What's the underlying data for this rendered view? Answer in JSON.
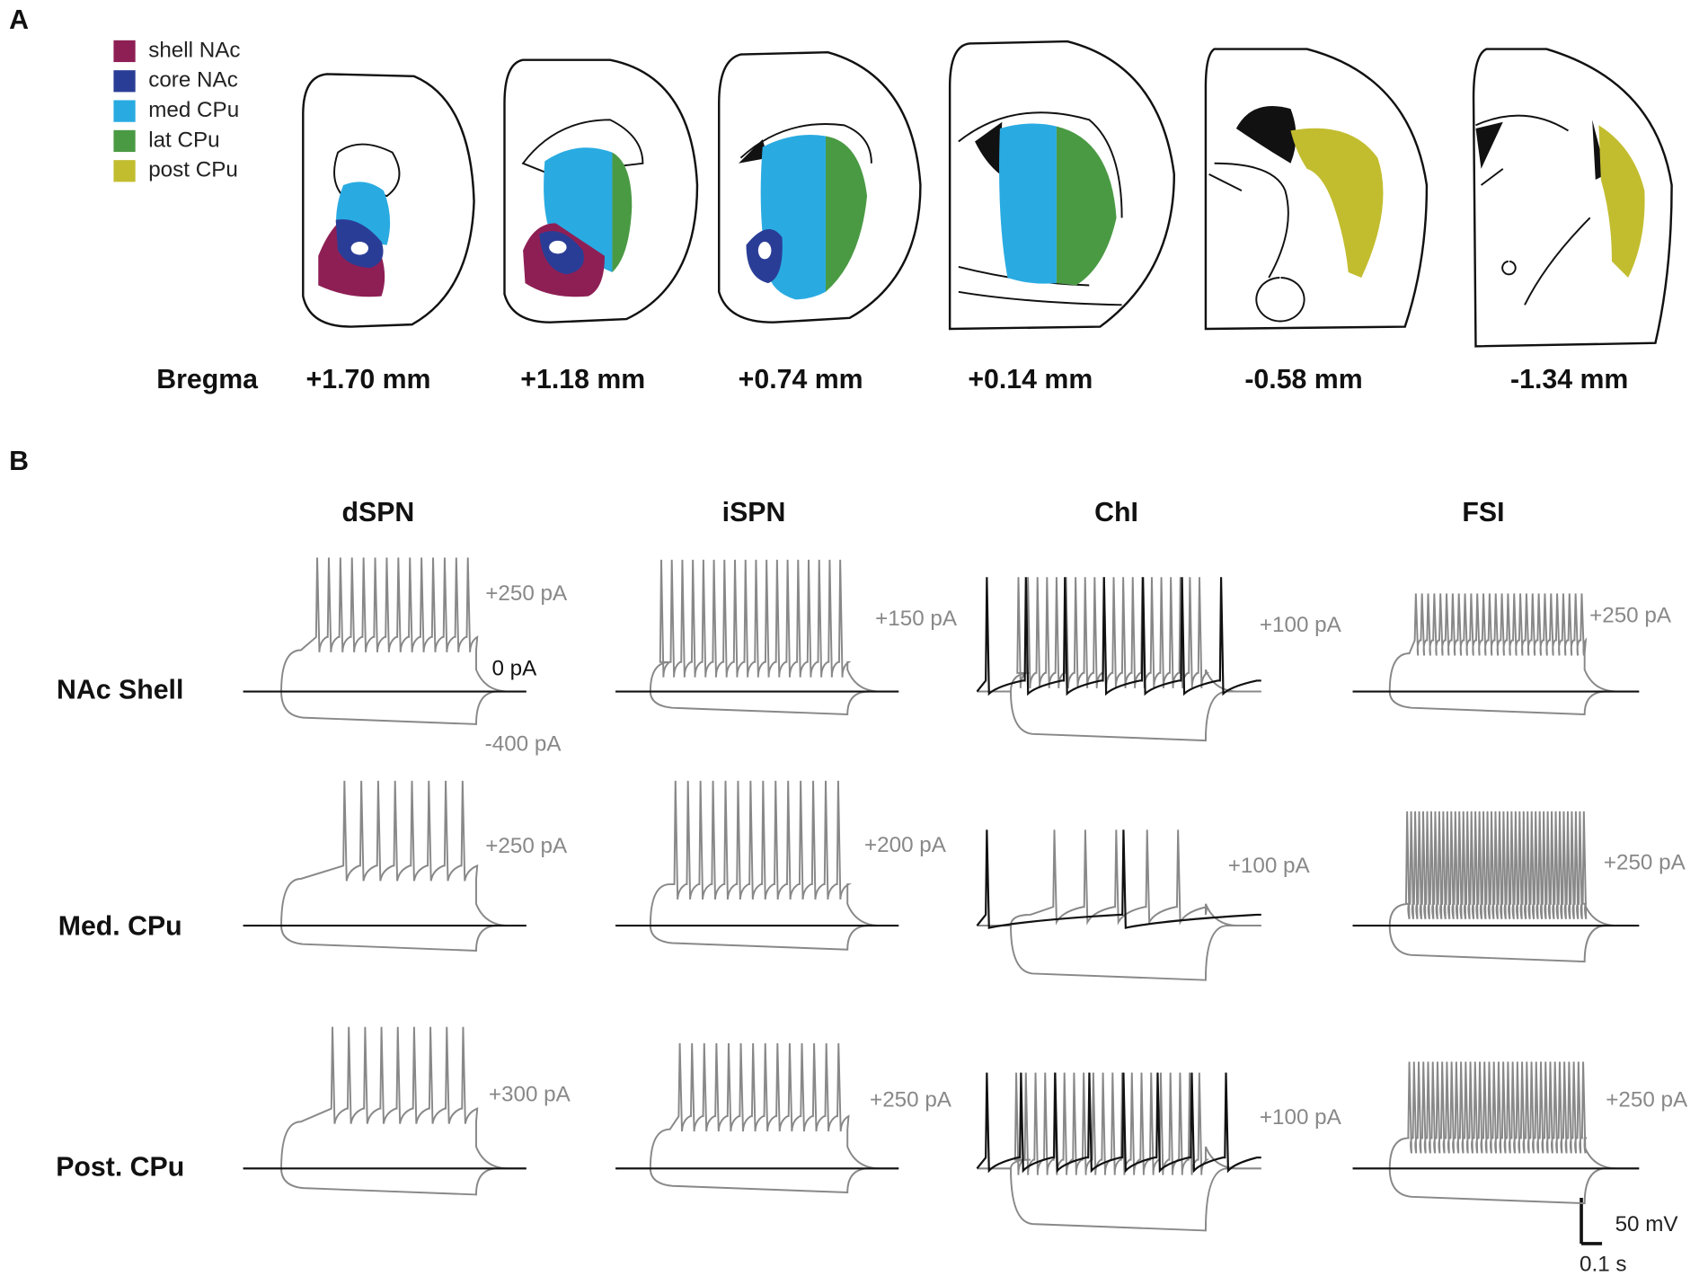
{
  "panel_a": {
    "label": "A",
    "legend": [
      {
        "name": "shell NAc",
        "color": "#8e1f55"
      },
      {
        "name": "core NAc",
        "color": "#2a3d96"
      },
      {
        "name": "med CPu",
        "color": "#29abe2"
      },
      {
        "name": "lat CPu",
        "color": "#4a9a44"
      },
      {
        "name": "post CPu",
        "color": "#c2bd2f"
      }
    ],
    "bregma_label": "Bregma",
    "sections": [
      "+1.70 mm",
      "+1.18 mm",
      "+0.74 mm",
      "+0.14 mm",
      "-0.58 mm",
      "-1.34 mm"
    ]
  },
  "panel_b": {
    "label": "B",
    "columns": [
      "dSPN",
      "iSPN",
      "ChI",
      "FSI"
    ],
    "rows": [
      {
        "name": "NAc Shell",
        "traces": [
          [
            "+250 pA",
            "0 pA",
            "-400 pA"
          ],
          [
            "+150 pA"
          ],
          [
            "+100 pA"
          ],
          [
            "+250 pA"
          ]
        ]
      },
      {
        "name": "Med. CPu",
        "traces": [
          [
            "+250 pA"
          ],
          [
            "+200 pA"
          ],
          [
            "+100 pA"
          ],
          [
            "+250 pA"
          ]
        ]
      },
      {
        "name": "Post. CPu",
        "traces": [
          [
            "+300 pA"
          ],
          [
            "+250 pA"
          ],
          [
            "+100 pA"
          ],
          [
            "+250 pA"
          ]
        ]
      }
    ],
    "scale_bar": {
      "voltage": "50 mV",
      "time": "0.1 s"
    }
  }
}
